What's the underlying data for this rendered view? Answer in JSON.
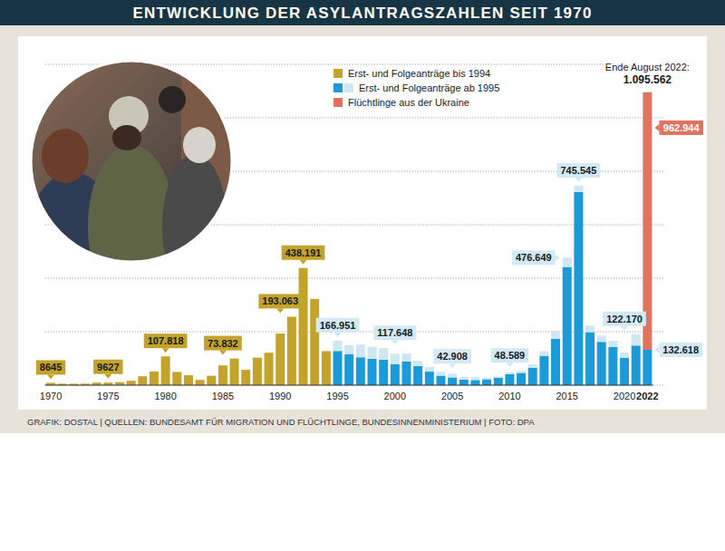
{
  "chart_data": {
    "type": "bar",
    "title": "ENTWICKLUNG DER ASYLANTRAGSZAHLEN SEIT 1970",
    "source": "GRAFIK: DOSTAL | QUELLEN: BUNDESAMT FÜR MIGRATION UND FLÜCHTLINGE, BUNDESINNENMINISTERIUM | FOTO: DPA",
    "categories": [
      "1970",
      null,
      null,
      null,
      null,
      "1975",
      null,
      null,
      null,
      null,
      "1980",
      null,
      null,
      null,
      null,
      "1985",
      null,
      null,
      null,
      null,
      "1990",
      null,
      null,
      null,
      null,
      "1995",
      null,
      null,
      null,
      null,
      "2000",
      null,
      null,
      null,
      null,
      "2005",
      null,
      null,
      null,
      null,
      "2010",
      null,
      null,
      null,
      null,
      "2015",
      null,
      null,
      null,
      null,
      "2020",
      null,
      "2022"
    ],
    "series": [
      {
        "name": "Erst- und Folgeanträge bis 1994",
        "color": "#c4a32c",
        "values": [
          8645,
          5388,
          5289,
          5595,
          9424,
          9627,
          11123,
          16410,
          33136,
          51493,
          107818,
          49391,
          37423,
          19737,
          35278,
          73832,
          99650,
          57379,
          103076,
          121318,
          193063,
          256112,
          438191,
          322599,
          127210,
          null,
          null,
          null,
          null,
          null,
          null,
          null,
          null,
          null,
          null,
          null,
          null,
          null,
          null,
          null,
          null,
          null,
          null,
          null,
          null,
          null,
          null,
          null,
          null,
          null,
          null,
          null,
          null
        ]
      },
      {
        "name": "Erst- und Folgeanträge ab 1995",
        "color": "#1b9ad7",
        "values": [
          null,
          null,
          null,
          null,
          null,
          null,
          null,
          null,
          null,
          null,
          null,
          null,
          null,
          null,
          null,
          null,
          null,
          null,
          null,
          null,
          null,
          null,
          null,
          null,
          null,
          127937,
          116367,
          104353,
          98644,
          95113,
          78564,
          88287,
          71127,
          50563,
          35607,
          28914,
          21029,
          19164,
          22085,
          27649,
          41332,
          45741,
          64539,
          109580,
          173072,
          441899,
          722370,
          198317,
          161931,
          142509,
          102581,
          148233,
          132618
        ]
      },
      {
        "name": "Erst- und Folgeanträge ab 1995",
        "color": "#cfe6f3",
        "values": [
          null,
          null,
          null,
          null,
          null,
          null,
          null,
          null,
          null,
          null,
          null,
          null,
          null,
          null,
          null,
          null,
          null,
          null,
          null,
          null,
          null,
          null,
          null,
          null,
          null,
          39014,
          32826,
          47347,
          44785,
          43206,
          39084,
          30019,
          20344,
          17285,
          14545,
          13994,
          9071,
          11139,
          5933,
          5384,
          7257,
          7606,
          13112,
          17443,
          29762,
          34750,
          23175,
          24366,
          23922,
          23429,
          19589,
          42583,
          null
        ]
      },
      {
        "name": "Flüchtlinge aus der Ukraine",
        "color": "#e0735f",
        "values": [
          null,
          null,
          null,
          null,
          null,
          null,
          null,
          null,
          null,
          null,
          null,
          null,
          null,
          null,
          null,
          null,
          null,
          null,
          null,
          null,
          null,
          null,
          null,
          null,
          null,
          null,
          null,
          null,
          null,
          null,
          null,
          null,
          null,
          null,
          null,
          null,
          null,
          null,
          null,
          null,
          null,
          null,
          null,
          null,
          null,
          null,
          null,
          null,
          null,
          null,
          null,
          null,
          962944
        ]
      }
    ],
    "ylim": [
      0,
      1200000
    ],
    "yticks": [
      0,
      200000,
      400000,
      600000,
      800000,
      1000000,
      1200000
    ],
    "grid": true,
    "stacked": true,
    "legend": "top",
    "tick_labels": "x",
    "annotations": [
      {
        "index": 0,
        "label": "8645",
        "value": 8645,
        "color": "#c4a32c"
      },
      {
        "index": 5,
        "label": "9627",
        "value": 9627,
        "color": "#c4a32c"
      },
      {
        "index": 10,
        "label": "107.818",
        "value": 107818,
        "color": "#c4a32c"
      },
      {
        "index": 15,
        "label": "73.832",
        "value": 73832,
        "color": "#c4a32c"
      },
      {
        "index": 20,
        "label": "193.063",
        "value": 193063,
        "color": "#c4a32c"
      },
      {
        "index": 22,
        "label": "438.191",
        "value": 438191,
        "color": "#c4a32c"
      },
      {
        "index": 25,
        "label": "166.951",
        "value": 166951,
        "color": "#d3eaf6"
      },
      {
        "index": 30,
        "label": "117.648",
        "value": 117648,
        "color": "#d3eaf6"
      },
      {
        "index": 35,
        "label": "42.908",
        "value": 42908,
        "color": "#d3eaf6"
      },
      {
        "index": 40,
        "label": "48.589",
        "value": 48589,
        "color": "#d3eaf6"
      },
      {
        "index": 45,
        "label": "476.649",
        "value": 476649,
        "color": "#d3eaf6"
      },
      {
        "index": 46,
        "label": "745.545",
        "value": 745545,
        "color": "#d3eaf6"
      },
      {
        "index": 50,
        "label": "122.170",
        "value": 122170,
        "color": "#d3eaf6"
      },
      {
        "index": 52,
        "label": "132.618",
        "value": 132618,
        "color": "#d3eaf6"
      },
      {
        "index": 52,
        "label": "962.944",
        "value": 962944,
        "color": "#e0735f"
      }
    ],
    "total_annotation": {
      "index": 52,
      "text": "Ende August 2022:",
      "label": "1.095.562",
      "value": 1095562
    }
  }
}
